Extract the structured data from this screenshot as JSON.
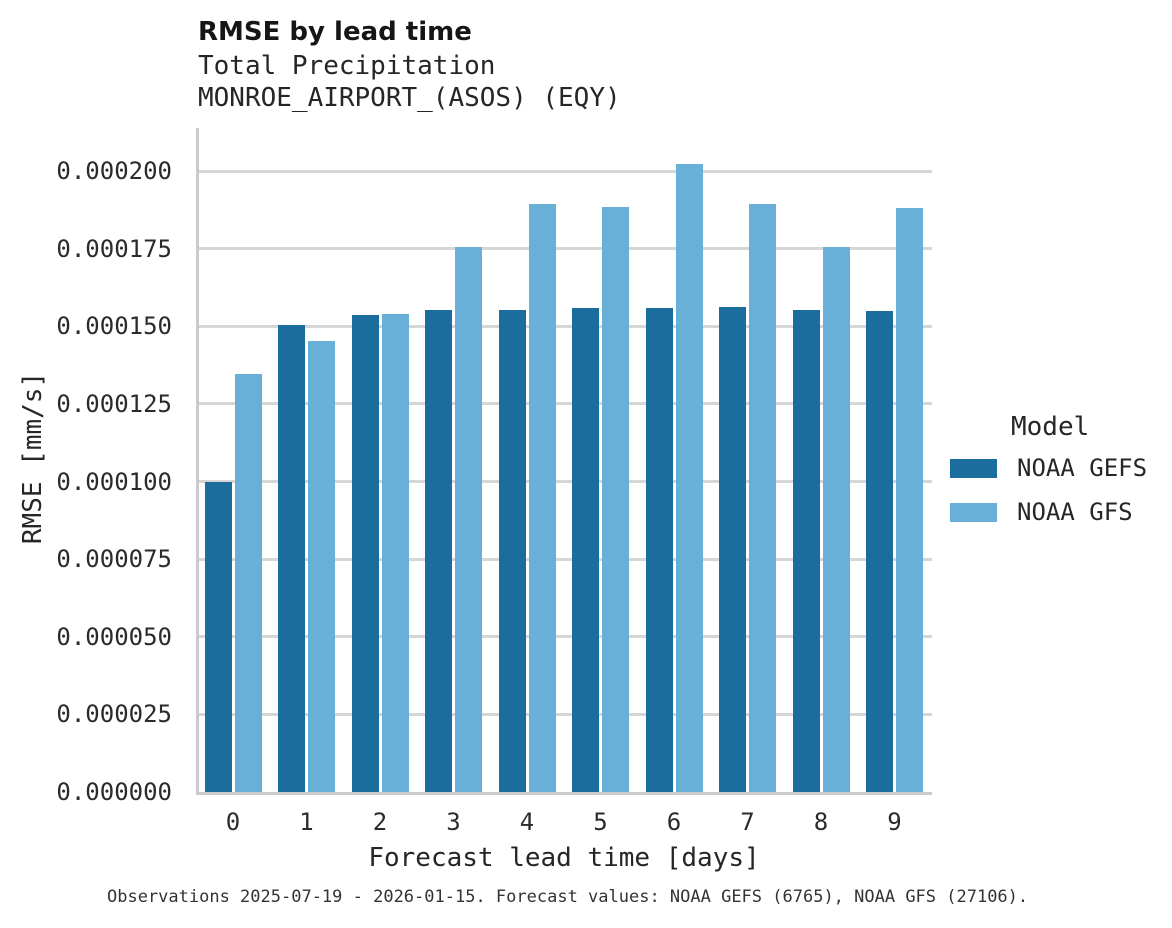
{
  "chart_data": {
    "type": "bar",
    "title": "RMSE by lead time",
    "subtitle": "Total Precipitation",
    "subtitle2": "MONROE_AIRPORT_(ASOS) (EQY)",
    "xlabel": "Forecast lead time [days]",
    "ylabel": "RMSE [mm/s]",
    "categories": [
      "0",
      "1",
      "2",
      "3",
      "4",
      "5",
      "6",
      "7",
      "8",
      "9"
    ],
    "series": [
      {
        "name": "NOAA GEFS",
        "color": "#1a6d9c",
        "values": [
          0.0001,
          0.0001505,
          0.0001536,
          0.0001552,
          0.0001552,
          0.0001558,
          0.000156,
          0.0001562,
          0.0001551,
          0.0001548
        ]
      },
      {
        "name": "NOAA GFS",
        "color": "#69b0d9",
        "values": [
          0.0001346,
          0.0001452,
          0.0001539,
          0.0001754,
          0.0001893,
          0.0001883,
          0.0002024,
          0.0001894,
          0.0001756,
          0.0001882
        ]
      }
    ],
    "ylim": [
      0,
      0.000214
    ],
    "ytick_values": [
      0,
      2.5e-05,
      5e-05,
      7.5e-05,
      0.0001,
      0.000125,
      0.00015,
      0.000175,
      0.0002
    ],
    "ytick_labels": [
      "0.000000",
      "0.000025",
      "0.000050",
      "0.000075",
      "0.000100",
      "0.000125",
      "0.000150",
      "0.000175",
      "0.000200"
    ],
    "grid": "horizontal",
    "grid_color": "#d6d6d6",
    "axis_color": "#c9cbcc",
    "legend": {
      "title": "Model",
      "position": "right",
      "entries": [
        "NOAA GEFS",
        "NOAA GFS"
      ]
    },
    "caption": "Observations 2025-07-19 - 2026-01-15. Forecast values: NOAA GEFS (6765), NOAA GFS (27106)."
  }
}
